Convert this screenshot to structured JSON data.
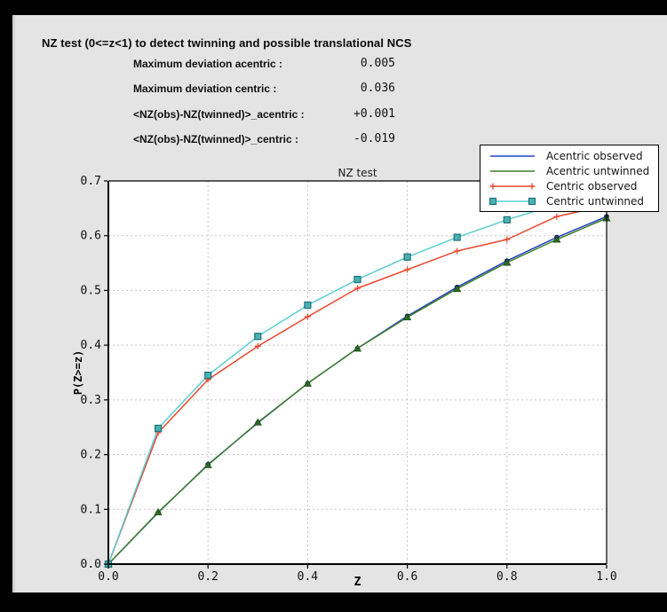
{
  "header": {
    "title": "NZ test (0<=z<1) to detect twinning and possible translational NCS"
  },
  "stats": [
    {
      "label": "Maximum deviation acentric :",
      "value": "0.005"
    },
    {
      "label": "Maximum deviation centric :",
      "value": "0.036"
    },
    {
      "label": "<NZ(obs)-NZ(twinned)>_acentric :",
      "value": "+0.001"
    },
    {
      "label": "<NZ(obs)-NZ(twinned)>_centric :",
      "value": "-0.019"
    }
  ],
  "chart_data": {
    "type": "line",
    "title": "NZ test",
    "xlabel": "Z",
    "ylabel": "P(Z>=z)",
    "xlim": [
      0.0,
      1.0
    ],
    "ylim": [
      0.0,
      0.7
    ],
    "grid": true,
    "legend_position": "upper right",
    "xtick_labels": [
      "0.0",
      "0.2",
      "0.4",
      "0.6",
      "0.8",
      "1.0"
    ],
    "ytick_labels": [
      "0.0",
      "0.1",
      "0.2",
      "0.3",
      "0.4",
      "0.5",
      "0.6",
      "0.7"
    ],
    "x": [
      0.0,
      0.1,
      0.2,
      0.3,
      0.4,
      0.5,
      0.6,
      0.7,
      0.8,
      0.9,
      1.0
    ],
    "series": [
      {
        "name": "Acentric observed",
        "slug": "acentric-observed",
        "color": "#2742c6",
        "marker": "circle",
        "marker_color": "#1c2d6e",
        "marker_edge": "#1c2d6e",
        "legend_marker": "none",
        "values": [
          0.0,
          0.094,
          0.182,
          0.258,
          0.33,
          0.394,
          0.453,
          0.506,
          0.554,
          0.597,
          0.635
        ]
      },
      {
        "name": "Acentric untwinned",
        "slug": "acentric-untwinned",
        "color": "#3f7d2b",
        "marker": "triangle",
        "marker_color": "#2e6b23",
        "marker_edge": "#1d4a14",
        "legend_marker": "none",
        "values": [
          0.0,
          0.095,
          0.181,
          0.259,
          0.33,
          0.394,
          0.451,
          0.503,
          0.551,
          0.593,
          0.632
        ]
      },
      {
        "name": "Centric observed",
        "slug": "centric-observed",
        "color": "#e9472f",
        "marker": "plus",
        "marker_color": "#e9472f",
        "marker_edge": "#e9472f",
        "legend_marker": "plus",
        "values": [
          0.0,
          0.24,
          0.337,
          0.398,
          0.452,
          0.504,
          0.538,
          0.572,
          0.593,
          0.635,
          0.655
        ]
      },
      {
        "name": "Centric untwinned",
        "slug": "centric-untwinned",
        "color": "#59ced2",
        "marker": "square",
        "marker_color": "#49b2b5",
        "marker_edge": "#1f7276",
        "legend_marker": "square",
        "values": [
          0.0,
          0.248,
          0.345,
          0.416,
          0.473,
          0.52,
          0.561,
          0.597,
          0.629,
          0.657,
          0.683
        ]
      }
    ]
  }
}
